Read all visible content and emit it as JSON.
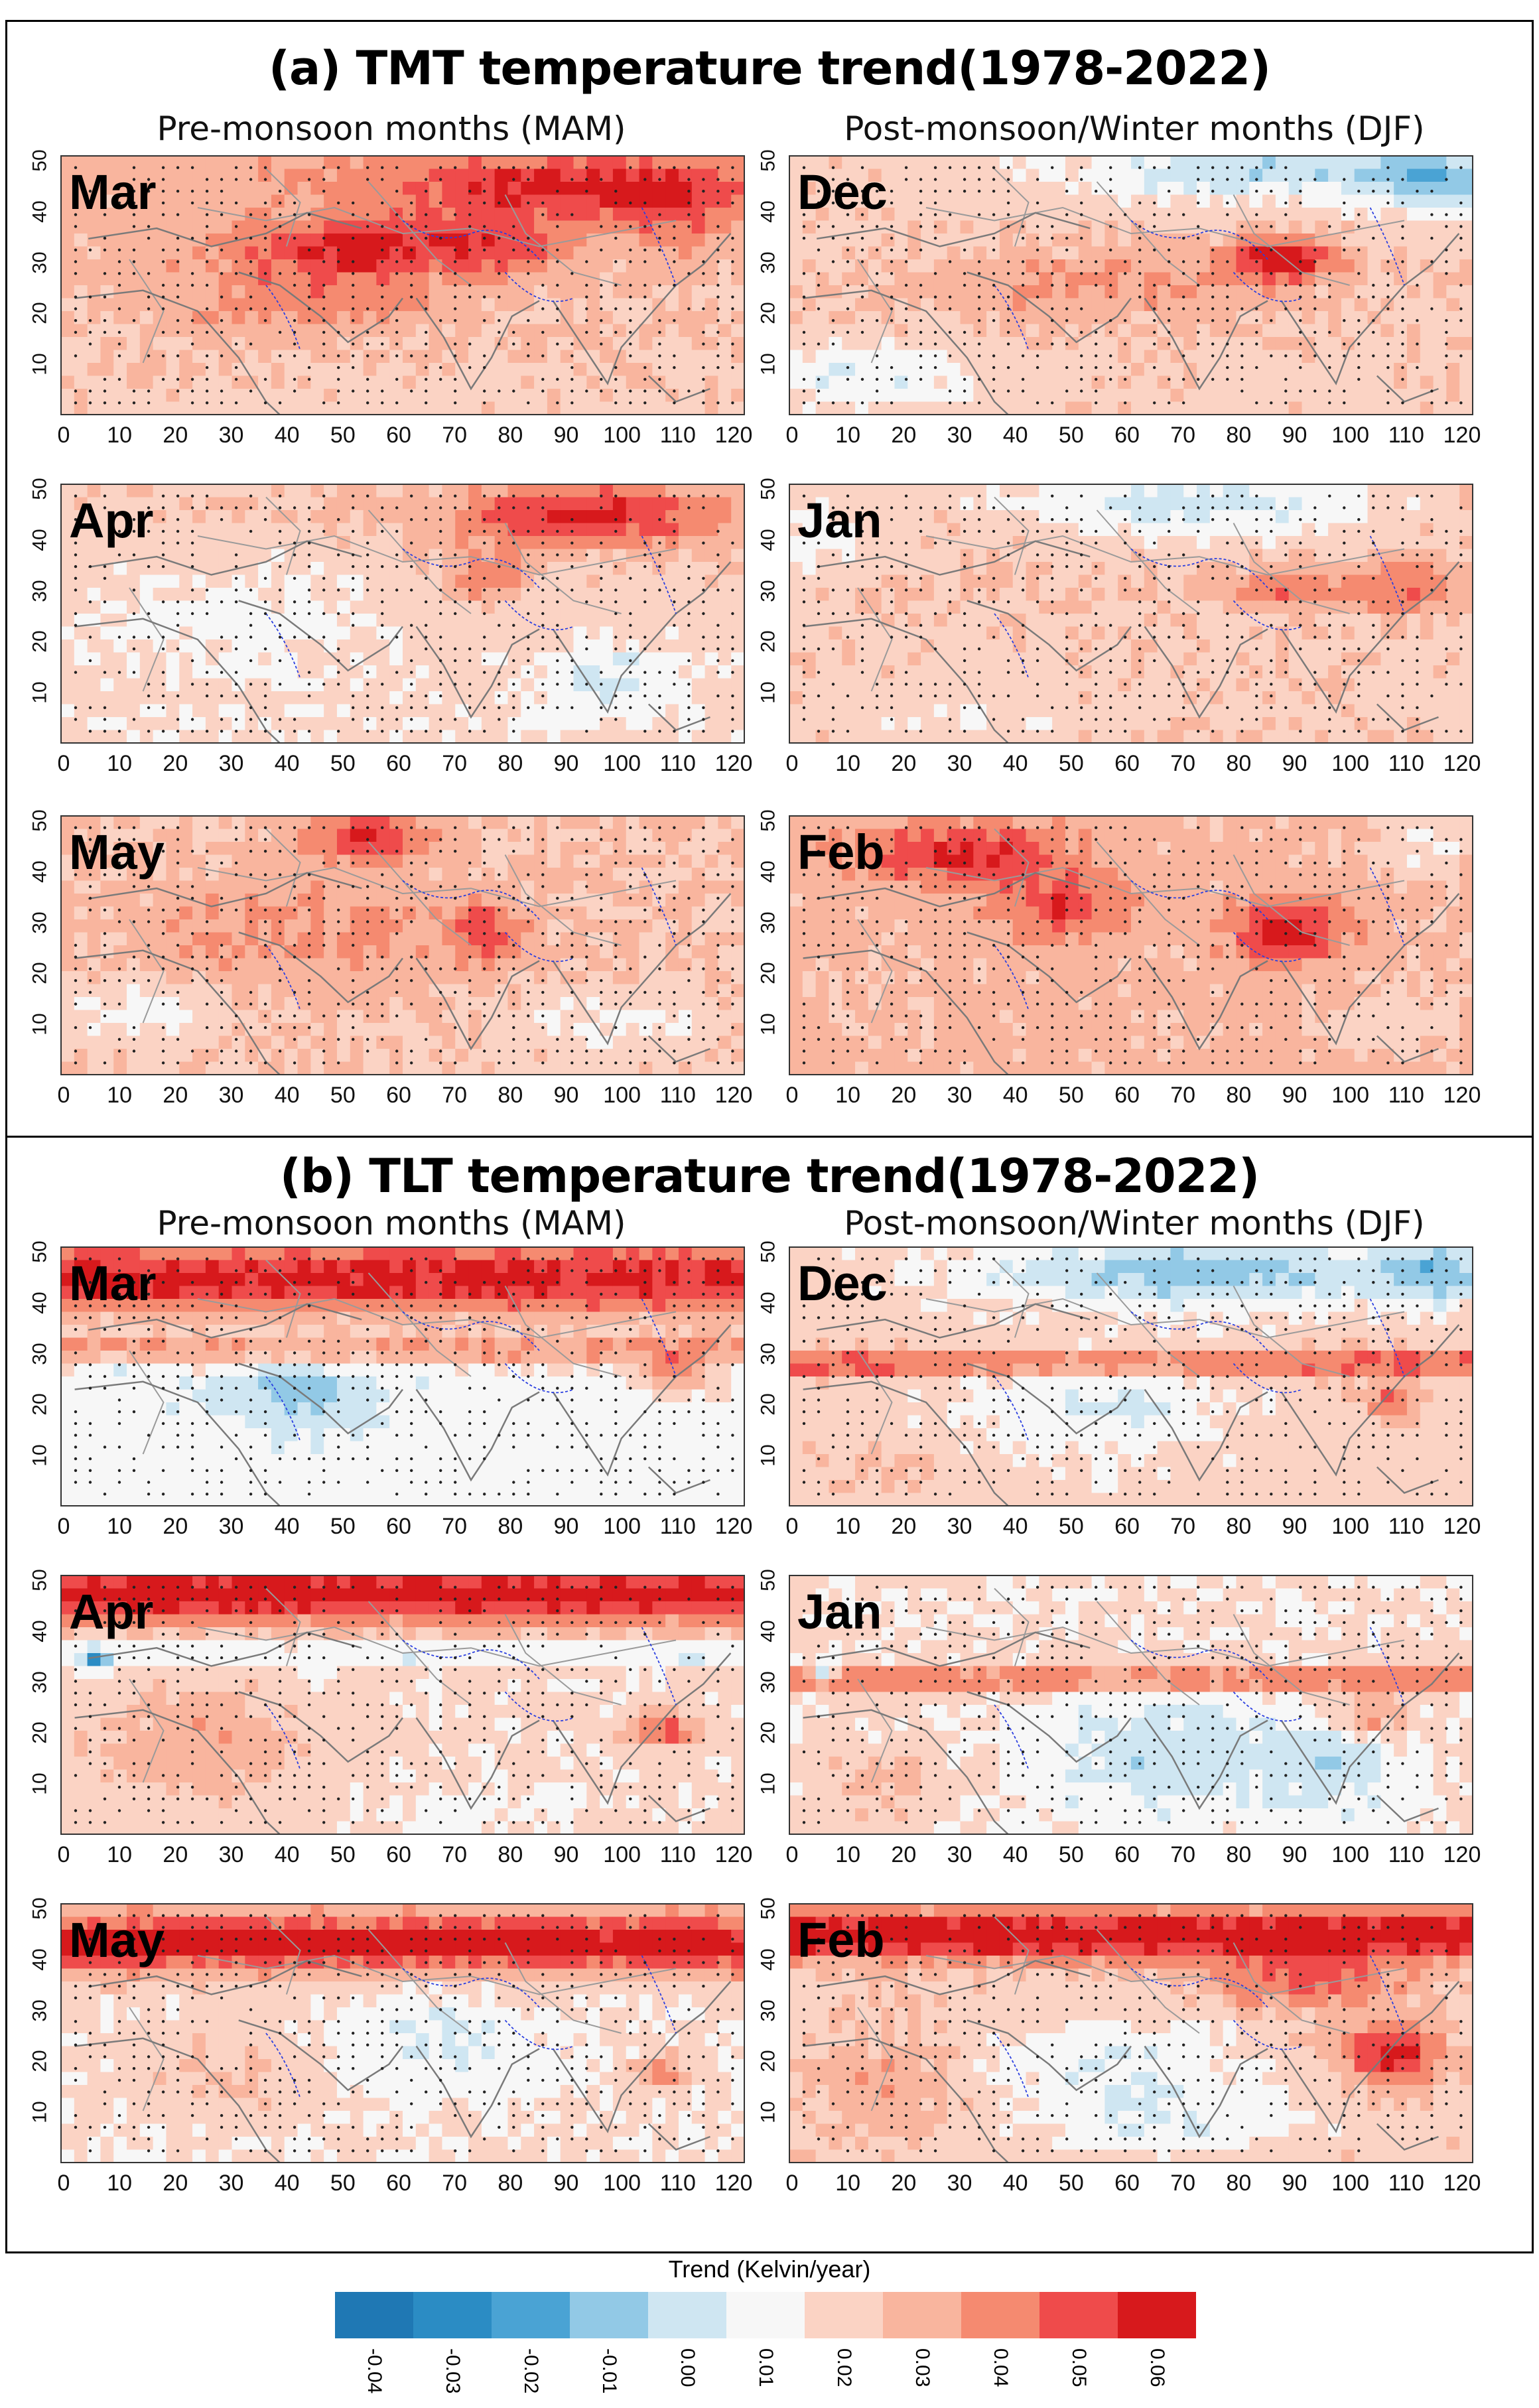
{
  "sections": [
    {
      "title": "(a) TMT  temperature trend(1978-2022)"
    },
    {
      "title": "(b) TLT  temperature trend(1978-2022)"
    }
  ],
  "columns": {
    "left": "Pre-monsoon months (MAM)",
    "right": "Post-monsoon/Winter months (DJF)"
  },
  "xticks": [
    "0",
    "10",
    "20",
    "30",
    "40",
    "50",
    "60",
    "70",
    "80",
    "90",
    "100",
    "110",
    "120"
  ],
  "yticks": [
    "10",
    "20",
    "30",
    "40",
    "50"
  ],
  "panels": [
    {
      "month": "Mar",
      "section": 0,
      "col": 0,
      "row": 0,
      "pattern": "tmt_mar"
    },
    {
      "month": "Dec",
      "section": 0,
      "col": 1,
      "row": 0,
      "pattern": "tmt_dec"
    },
    {
      "month": "Apr",
      "section": 0,
      "col": 0,
      "row": 1,
      "pattern": "tmt_apr"
    },
    {
      "month": "Jan",
      "section": 0,
      "col": 1,
      "row": 1,
      "pattern": "tmt_jan"
    },
    {
      "month": "May",
      "section": 0,
      "col": 0,
      "row": 2,
      "pattern": "tmt_may"
    },
    {
      "month": "Feb",
      "section": 0,
      "col": 1,
      "row": 2,
      "pattern": "tmt_feb"
    },
    {
      "month": "Mar",
      "section": 1,
      "col": 0,
      "row": 0,
      "pattern": "tlt_mar"
    },
    {
      "month": "Dec",
      "section": 1,
      "col": 1,
      "row": 0,
      "pattern": "tlt_dec"
    },
    {
      "month": "Apr",
      "section": 1,
      "col": 0,
      "row": 1,
      "pattern": "tlt_apr"
    },
    {
      "month": "Jan",
      "section": 1,
      "col": 1,
      "row": 1,
      "pattern": "tlt_jan"
    },
    {
      "month": "May",
      "section": 1,
      "col": 0,
      "row": 2,
      "pattern": "tlt_may"
    },
    {
      "month": "Feb",
      "section": 1,
      "col": 1,
      "row": 2,
      "pattern": "tlt_feb"
    }
  ],
  "legend": {
    "title": "Trend (Kelvin/year)",
    "classes": [
      {
        "label": "-0.04",
        "color": "#1f78b4"
      },
      {
        "label": "-0.03",
        "color": "#2b8cc4"
      },
      {
        "label": "-0.02",
        "color": "#4aa3d4"
      },
      {
        "label": "-0.01",
        "color": "#92c9e6"
      },
      {
        "label": "0.00",
        "color": "#cfe6f2"
      },
      {
        "label": "0.01",
        "color": "#f7f7f7"
      },
      {
        "label": "0.02",
        "color": "#fbd3c4"
      },
      {
        "label": "0.03",
        "color": "#f9b59e"
      },
      {
        "label": "0.04",
        "color": "#f58a70"
      },
      {
        "label": "0.05",
        "color": "#ef4b4b"
      },
      {
        "label": "0.06",
        "color": "#d7191c"
      }
    ]
  }
}
